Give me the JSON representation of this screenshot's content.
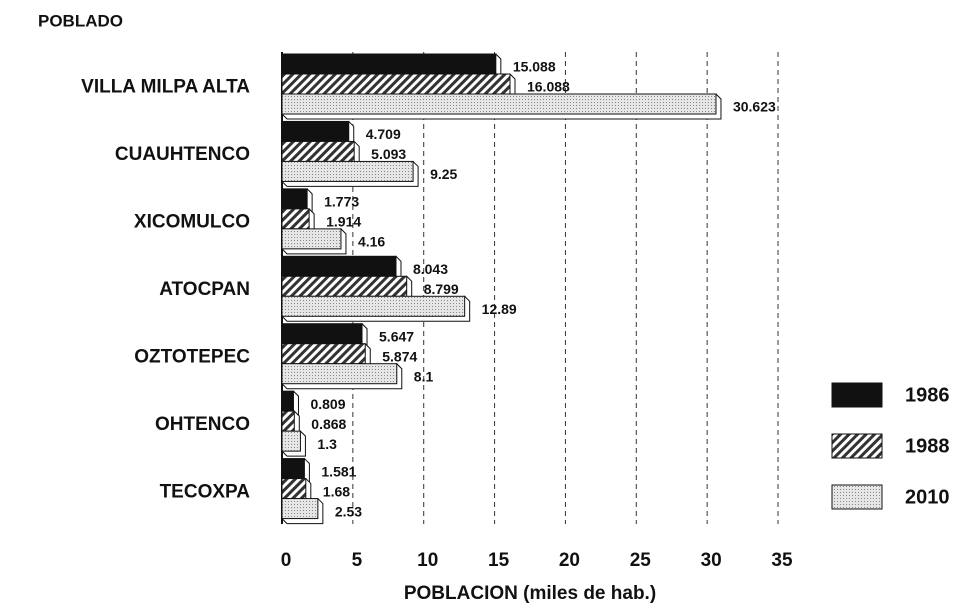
{
  "chart_data": {
    "type": "hbar",
    "y_label": "POBLADO",
    "x_label": "POBLACION (miles de hab.)",
    "categories": [
      "VILLA MILPA ALTA",
      "CUAUHTENCO",
      "XICOMULCO",
      "ATOCPAN",
      "OZTOTEPEC",
      "OHTENCO",
      "TECOXPA"
    ],
    "series": [
      {
        "name": "1986",
        "color": "#111111",
        "pattern": "solid",
        "values": [
          15.088,
          4.709,
          1.773,
          8.043,
          5.647,
          0.809,
          1.581
        ]
      },
      {
        "name": "1988",
        "color": "#333333",
        "pattern": "hatch",
        "values": [
          16.088,
          5.093,
          1.914,
          8.799,
          5.874,
          0.868,
          1.68
        ]
      },
      {
        "name": "2010",
        "color": "#bbbbbb",
        "pattern": "dots",
        "values": [
          30.623,
          9.25,
          4.16,
          12.89,
          8.1,
          1.3,
          2.53
        ]
      }
    ],
    "xlim": [
      0,
      35
    ],
    "xticks": [
      0,
      5,
      10,
      15,
      20,
      25,
      30,
      35
    ],
    "grid": true,
    "legend": "right"
  }
}
